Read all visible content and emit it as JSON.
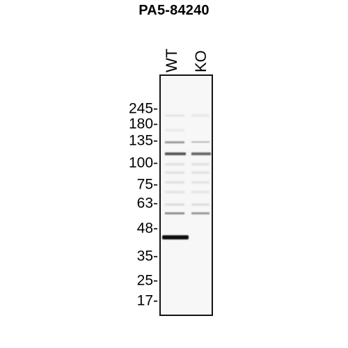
{
  "title": "PA5-84240",
  "lanes": {
    "wt": "WT",
    "ko": "KO"
  },
  "markers": [
    "245-",
    "180-",
    "135-",
    "100-",
    "75-",
    "63-",
    "48-",
    "35-",
    "25-",
    "17-"
  ],
  "bands": [
    {
      "lane": "WT",
      "kda": 44,
      "intensity": "strong"
    },
    {
      "lane": "WT",
      "kda": 118,
      "intensity": "medium"
    },
    {
      "lane": "KO",
      "kda": 118,
      "intensity": "medium"
    },
    {
      "lane": "WT",
      "kda": 56,
      "intensity": "faint"
    },
    {
      "lane": "KO",
      "kda": 56,
      "intensity": "faint"
    }
  ]
}
